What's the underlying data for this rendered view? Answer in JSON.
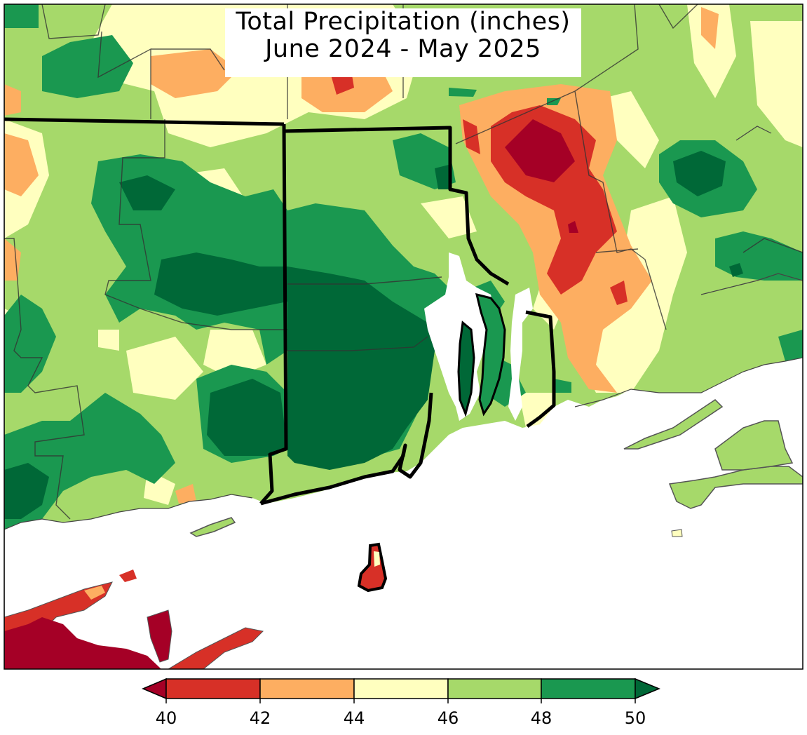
{
  "map": {
    "title_line1": "Total Precipitation (inches)",
    "title_line2": "June 2024 - May 2025",
    "variable": "total precipitation",
    "units": "inches"
  },
  "colorbar": {
    "ticks": [
      "40",
      "42",
      "44",
      "46",
      "48",
      "50"
    ],
    "bins": [
      {
        "range": "<40",
        "color": "#a50026"
      },
      {
        "range": "40-42",
        "color": "#d73027"
      },
      {
        "range": "42-44",
        "color": "#fdae61"
      },
      {
        "range": "44-46",
        "color": "#ffffbf"
      },
      {
        "range": "46-48",
        "color": "#a6d96a"
      },
      {
        "range": "48-50",
        "color": "#1a9850"
      },
      {
        "range": ">50",
        "color": "#006837"
      }
    ],
    "extend": "both"
  }
}
